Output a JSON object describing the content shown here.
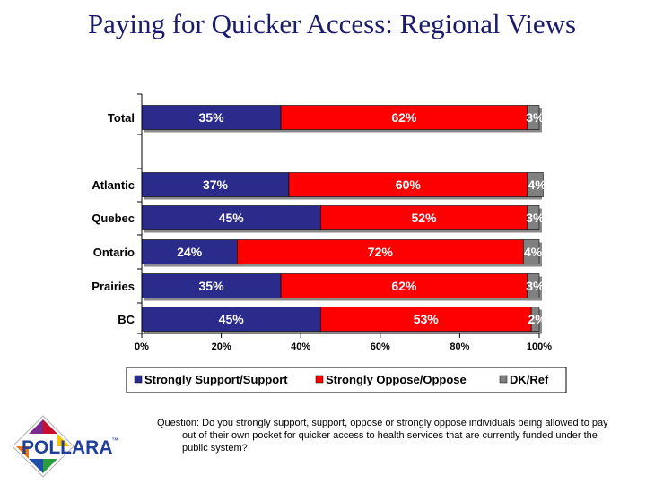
{
  "page": {
    "title": "Paying for Quicker Access: Regional Views",
    "question": "Question: Do you strongly support, support, oppose or strongly oppose individuals being allowed to pay out of their own pocket for quicker access to health services that are currently funded under the public system?",
    "logo_text": "POLLARA",
    "logo_mark": "™"
  },
  "chart_data": {
    "type": "bar",
    "orientation": "horizontal",
    "stacked": true,
    "categories": [
      "Total",
      "Atlantic",
      "Quebec",
      "Ontario",
      "Prairies",
      "BC"
    ],
    "series": [
      {
        "name": "Strongly Support/Support",
        "color": "#2b2b8c",
        "values": [
          35,
          37,
          45,
          24,
          35,
          45
        ]
      },
      {
        "name": "Strongly Oppose/Oppose",
        "color": "#ff0000",
        "values": [
          62,
          60,
          52,
          72,
          62,
          53
        ]
      },
      {
        "name": "DK/Ref",
        "color": "#808080",
        "values": [
          3,
          4,
          3,
          4,
          3,
          2
        ]
      }
    ],
    "value_suffix": "%",
    "xlim": [
      0,
      100
    ],
    "xticks": [
      "0%",
      "20%",
      "40%",
      "60%",
      "80%",
      "100%"
    ],
    "xtick_values": [
      0,
      20,
      40,
      60,
      80,
      100
    ],
    "grid": false,
    "legend_position": "bottom"
  }
}
